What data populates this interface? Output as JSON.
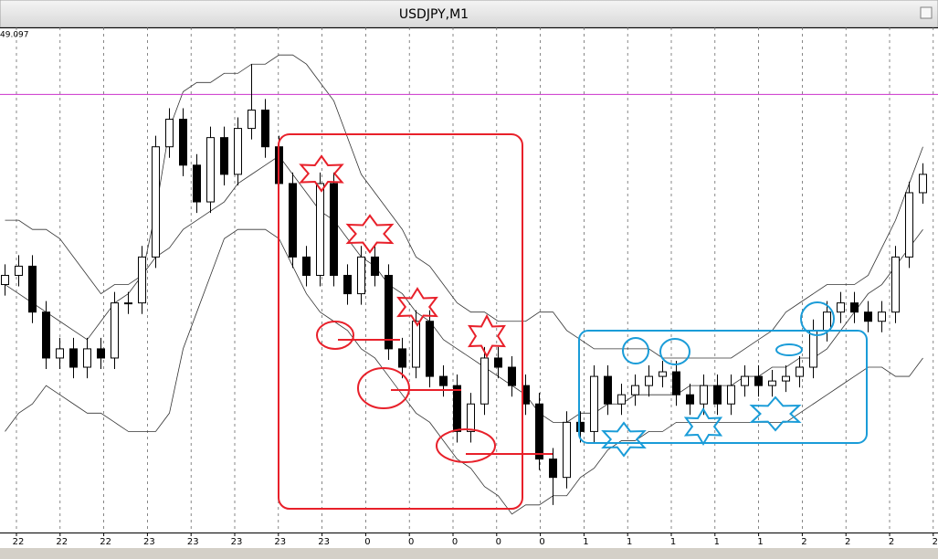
{
  "chart_data": {
    "type": "candlestick",
    "title": "USDJPY,M1",
    "price_label": "49.097",
    "ylim": [
      148.55,
      149.1
    ],
    "level_line": 149.027,
    "level_color": "#cc33cc",
    "up_color": "#ffffff",
    "down_color": "#000000",
    "band_color": "#333333",
    "xlabels": [
      "22",
      "22",
      "22",
      "23",
      "23",
      "23",
      "23",
      "23",
      "0",
      "0",
      "0",
      "0",
      "0",
      "1",
      "1",
      "1",
      "1",
      "1",
      "2",
      "2",
      "2",
      "2"
    ],
    "candles": {
      "open": [
        148.82,
        148.83,
        148.84,
        148.79,
        148.74,
        148.75,
        148.73,
        148.75,
        148.74,
        148.8,
        148.8,
        148.85,
        148.97,
        149.0,
        148.95,
        148.91,
        148.98,
        148.94,
        148.99,
        149.01,
        148.97,
        148.93,
        148.85,
        148.83,
        148.93,
        148.83,
        148.81,
        148.85,
        148.83,
        148.75,
        148.73,
        148.78,
        148.72,
        148.71,
        148.66,
        148.69,
        148.74,
        148.73,
        148.71,
        148.69,
        148.63,
        148.61,
        148.67,
        148.66,
        148.72,
        148.69,
        148.7,
        148.71,
        148.72,
        148.725,
        148.7,
        148.69,
        148.71,
        148.69,
        148.71,
        148.72,
        148.71,
        148.715,
        148.72,
        148.73,
        148.77,
        148.79,
        148.8,
        148.79,
        148.78,
        148.79,
        148.85,
        148.92
      ],
      "high": [
        148.842,
        148.852,
        148.852,
        148.802,
        148.762,
        148.762,
        148.762,
        148.762,
        148.812,
        148.812,
        148.862,
        148.982,
        149.012,
        149.012,
        148.962,
        148.992,
        148.992,
        149.002,
        149.06,
        149.022,
        148.982,
        148.942,
        148.862,
        148.942,
        148.942,
        148.842,
        148.862,
        148.862,
        148.842,
        148.762,
        148.792,
        148.792,
        148.732,
        148.722,
        148.702,
        148.752,
        148.752,
        148.742,
        148.722,
        148.702,
        148.642,
        148.682,
        148.682,
        148.732,
        148.732,
        148.712,
        148.722,
        148.732,
        148.737,
        148.737,
        148.712,
        148.722,
        148.722,
        148.722,
        148.732,
        148.732,
        148.727,
        148.732,
        148.742,
        148.782,
        148.802,
        148.812,
        148.812,
        148.802,
        148.802,
        148.862,
        148.932,
        148.952
      ],
      "low": [
        148.808,
        148.818,
        148.778,
        148.728,
        148.728,
        148.718,
        148.718,
        148.728,
        148.728,
        148.788,
        148.788,
        148.838,
        148.958,
        148.938,
        148.898,
        148.898,
        148.928,
        148.928,
        148.978,
        148.958,
        148.918,
        148.838,
        148.818,
        148.818,
        148.818,
        148.798,
        148.798,
        148.818,
        148.738,
        148.718,
        148.718,
        148.708,
        148.698,
        148.648,
        148.648,
        148.678,
        148.718,
        148.698,
        148.678,
        148.618,
        148.58,
        148.598,
        148.648,
        148.648,
        148.678,
        148.678,
        148.688,
        148.698,
        148.708,
        148.688,
        148.678,
        148.678,
        148.678,
        148.678,
        148.698,
        148.698,
        148.698,
        148.703,
        148.708,
        148.718,
        148.758,
        148.778,
        148.778,
        148.768,
        148.768,
        148.778,
        148.838,
        148.908
      ],
      "close": [
        148.83,
        148.84,
        148.79,
        148.74,
        148.75,
        148.73,
        148.75,
        148.74,
        148.8,
        148.8,
        148.85,
        148.97,
        149.0,
        148.95,
        148.91,
        148.98,
        148.94,
        148.99,
        149.01,
        148.97,
        148.93,
        148.85,
        148.83,
        148.93,
        148.83,
        148.81,
        148.85,
        148.83,
        148.75,
        148.73,
        148.78,
        148.72,
        148.71,
        148.66,
        148.69,
        148.74,
        148.73,
        148.71,
        148.69,
        148.63,
        148.61,
        148.67,
        148.66,
        148.72,
        148.69,
        148.7,
        148.71,
        148.72,
        148.725,
        148.7,
        148.69,
        148.71,
        148.69,
        148.71,
        148.72,
        148.71,
        148.715,
        148.72,
        148.73,
        148.77,
        148.79,
        148.8,
        148.79,
        148.78,
        148.79,
        148.85,
        148.92,
        148.94
      ]
    },
    "bands": {
      "upper": [
        148.89,
        148.89,
        148.88,
        148.88,
        148.87,
        148.85,
        148.83,
        148.81,
        148.82,
        148.82,
        148.83,
        148.9,
        148.99,
        149.03,
        149.04,
        149.04,
        149.05,
        149.05,
        149.06,
        149.06,
        149.07,
        149.07,
        149.06,
        149.04,
        149.02,
        148.98,
        148.94,
        148.92,
        148.9,
        148.88,
        148.85,
        148.84,
        148.82,
        148.8,
        148.79,
        148.79,
        148.78,
        148.78,
        148.78,
        148.79,
        148.79,
        148.77,
        148.76,
        148.75,
        148.75,
        148.75,
        148.75,
        148.75,
        148.74,
        148.74,
        148.74,
        148.74,
        148.74,
        148.74,
        148.75,
        148.76,
        148.77,
        148.79,
        148.8,
        148.81,
        148.82,
        148.82,
        148.82,
        148.83,
        148.86,
        148.89,
        148.93,
        148.97
      ],
      "middle": [
        148.82,
        148.81,
        148.8,
        148.79,
        148.78,
        148.77,
        148.76,
        148.78,
        148.8,
        148.81,
        148.83,
        148.85,
        148.86,
        148.88,
        148.89,
        148.9,
        148.91,
        148.93,
        148.94,
        148.95,
        148.96,
        148.94,
        148.92,
        148.9,
        148.89,
        148.87,
        148.85,
        148.84,
        148.82,
        148.81,
        148.79,
        148.78,
        148.76,
        148.75,
        148.74,
        148.73,
        148.72,
        148.71,
        148.7,
        148.68,
        148.67,
        148.67,
        148.68,
        148.68,
        148.69,
        148.69,
        148.7,
        148.7,
        148.7,
        148.7,
        148.71,
        148.71,
        148.71,
        148.71,
        148.72,
        148.72,
        148.73,
        148.73,
        148.74,
        148.74,
        148.75,
        148.77,
        148.79,
        148.81,
        148.82,
        148.84,
        148.86,
        148.88
      ],
      "lower": [
        148.66,
        148.68,
        148.69,
        148.71,
        148.7,
        148.69,
        148.68,
        148.68,
        148.67,
        148.66,
        148.66,
        148.66,
        148.68,
        148.75,
        148.79,
        148.83,
        148.87,
        148.88,
        148.88,
        148.88,
        148.87,
        148.84,
        148.81,
        148.79,
        148.78,
        148.77,
        148.75,
        148.74,
        148.72,
        148.7,
        148.68,
        148.67,
        148.65,
        148.63,
        148.62,
        148.6,
        148.59,
        148.57,
        148.58,
        148.58,
        148.59,
        148.59,
        148.61,
        148.62,
        148.64,
        148.65,
        148.65,
        148.66,
        148.66,
        148.67,
        148.67,
        148.67,
        148.67,
        148.67,
        148.67,
        148.67,
        148.67,
        148.67,
        148.68,
        148.69,
        148.7,
        148.71,
        148.72,
        148.73,
        148.73,
        148.72,
        148.72,
        148.74
      ]
    }
  }
}
